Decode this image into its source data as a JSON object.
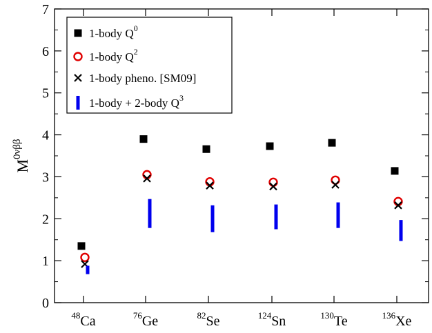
{
  "chart_data": {
    "type": "scatter",
    "ylabel": {
      "base": "M",
      "sup": "0νββ"
    },
    "ylim": [
      0,
      7
    ],
    "yticks": [
      0,
      1,
      2,
      3,
      4,
      5,
      6,
      7
    ],
    "categories": [
      {
        "mass": "48",
        "element": "Ca"
      },
      {
        "mass": "76",
        "element": "Ge"
      },
      {
        "mass": "82",
        "element": "Se"
      },
      {
        "mass": "124",
        "element": "Sn"
      },
      {
        "mass": "130",
        "element": "Te"
      },
      {
        "mass": "136",
        "element": "Xe"
      }
    ],
    "series": [
      {
        "name": "1-body Q",
        "name_sup": "0",
        "marker": "square",
        "color": "#000000",
        "values": [
          1.35,
          3.9,
          3.66,
          3.73,
          3.81,
          3.14
        ]
      },
      {
        "name": "1-body Q",
        "name_sup": "2",
        "marker": "circle",
        "color": "#e00000",
        "values": [
          1.08,
          3.05,
          2.88,
          2.87,
          2.92,
          2.41
        ]
      },
      {
        "name": "1-body pheno. [SM09]",
        "name_sup": "",
        "marker": "cross",
        "color": "#000000",
        "values": [
          0.92,
          2.96,
          2.79,
          2.77,
          2.81,
          2.32
        ]
      },
      {
        "name": "1-body + 2-body Q",
        "name_sup": "3",
        "marker": "range",
        "color": "#0000ee",
        "ranges": [
          [
            0.68,
            0.88
          ],
          [
            1.78,
            2.47
          ],
          [
            1.68,
            2.32
          ],
          [
            1.75,
            2.34
          ],
          [
            1.78,
            2.39
          ],
          [
            1.47,
            1.97
          ]
        ]
      }
    ],
    "legend_position": "top-left",
    "grid": false
  }
}
